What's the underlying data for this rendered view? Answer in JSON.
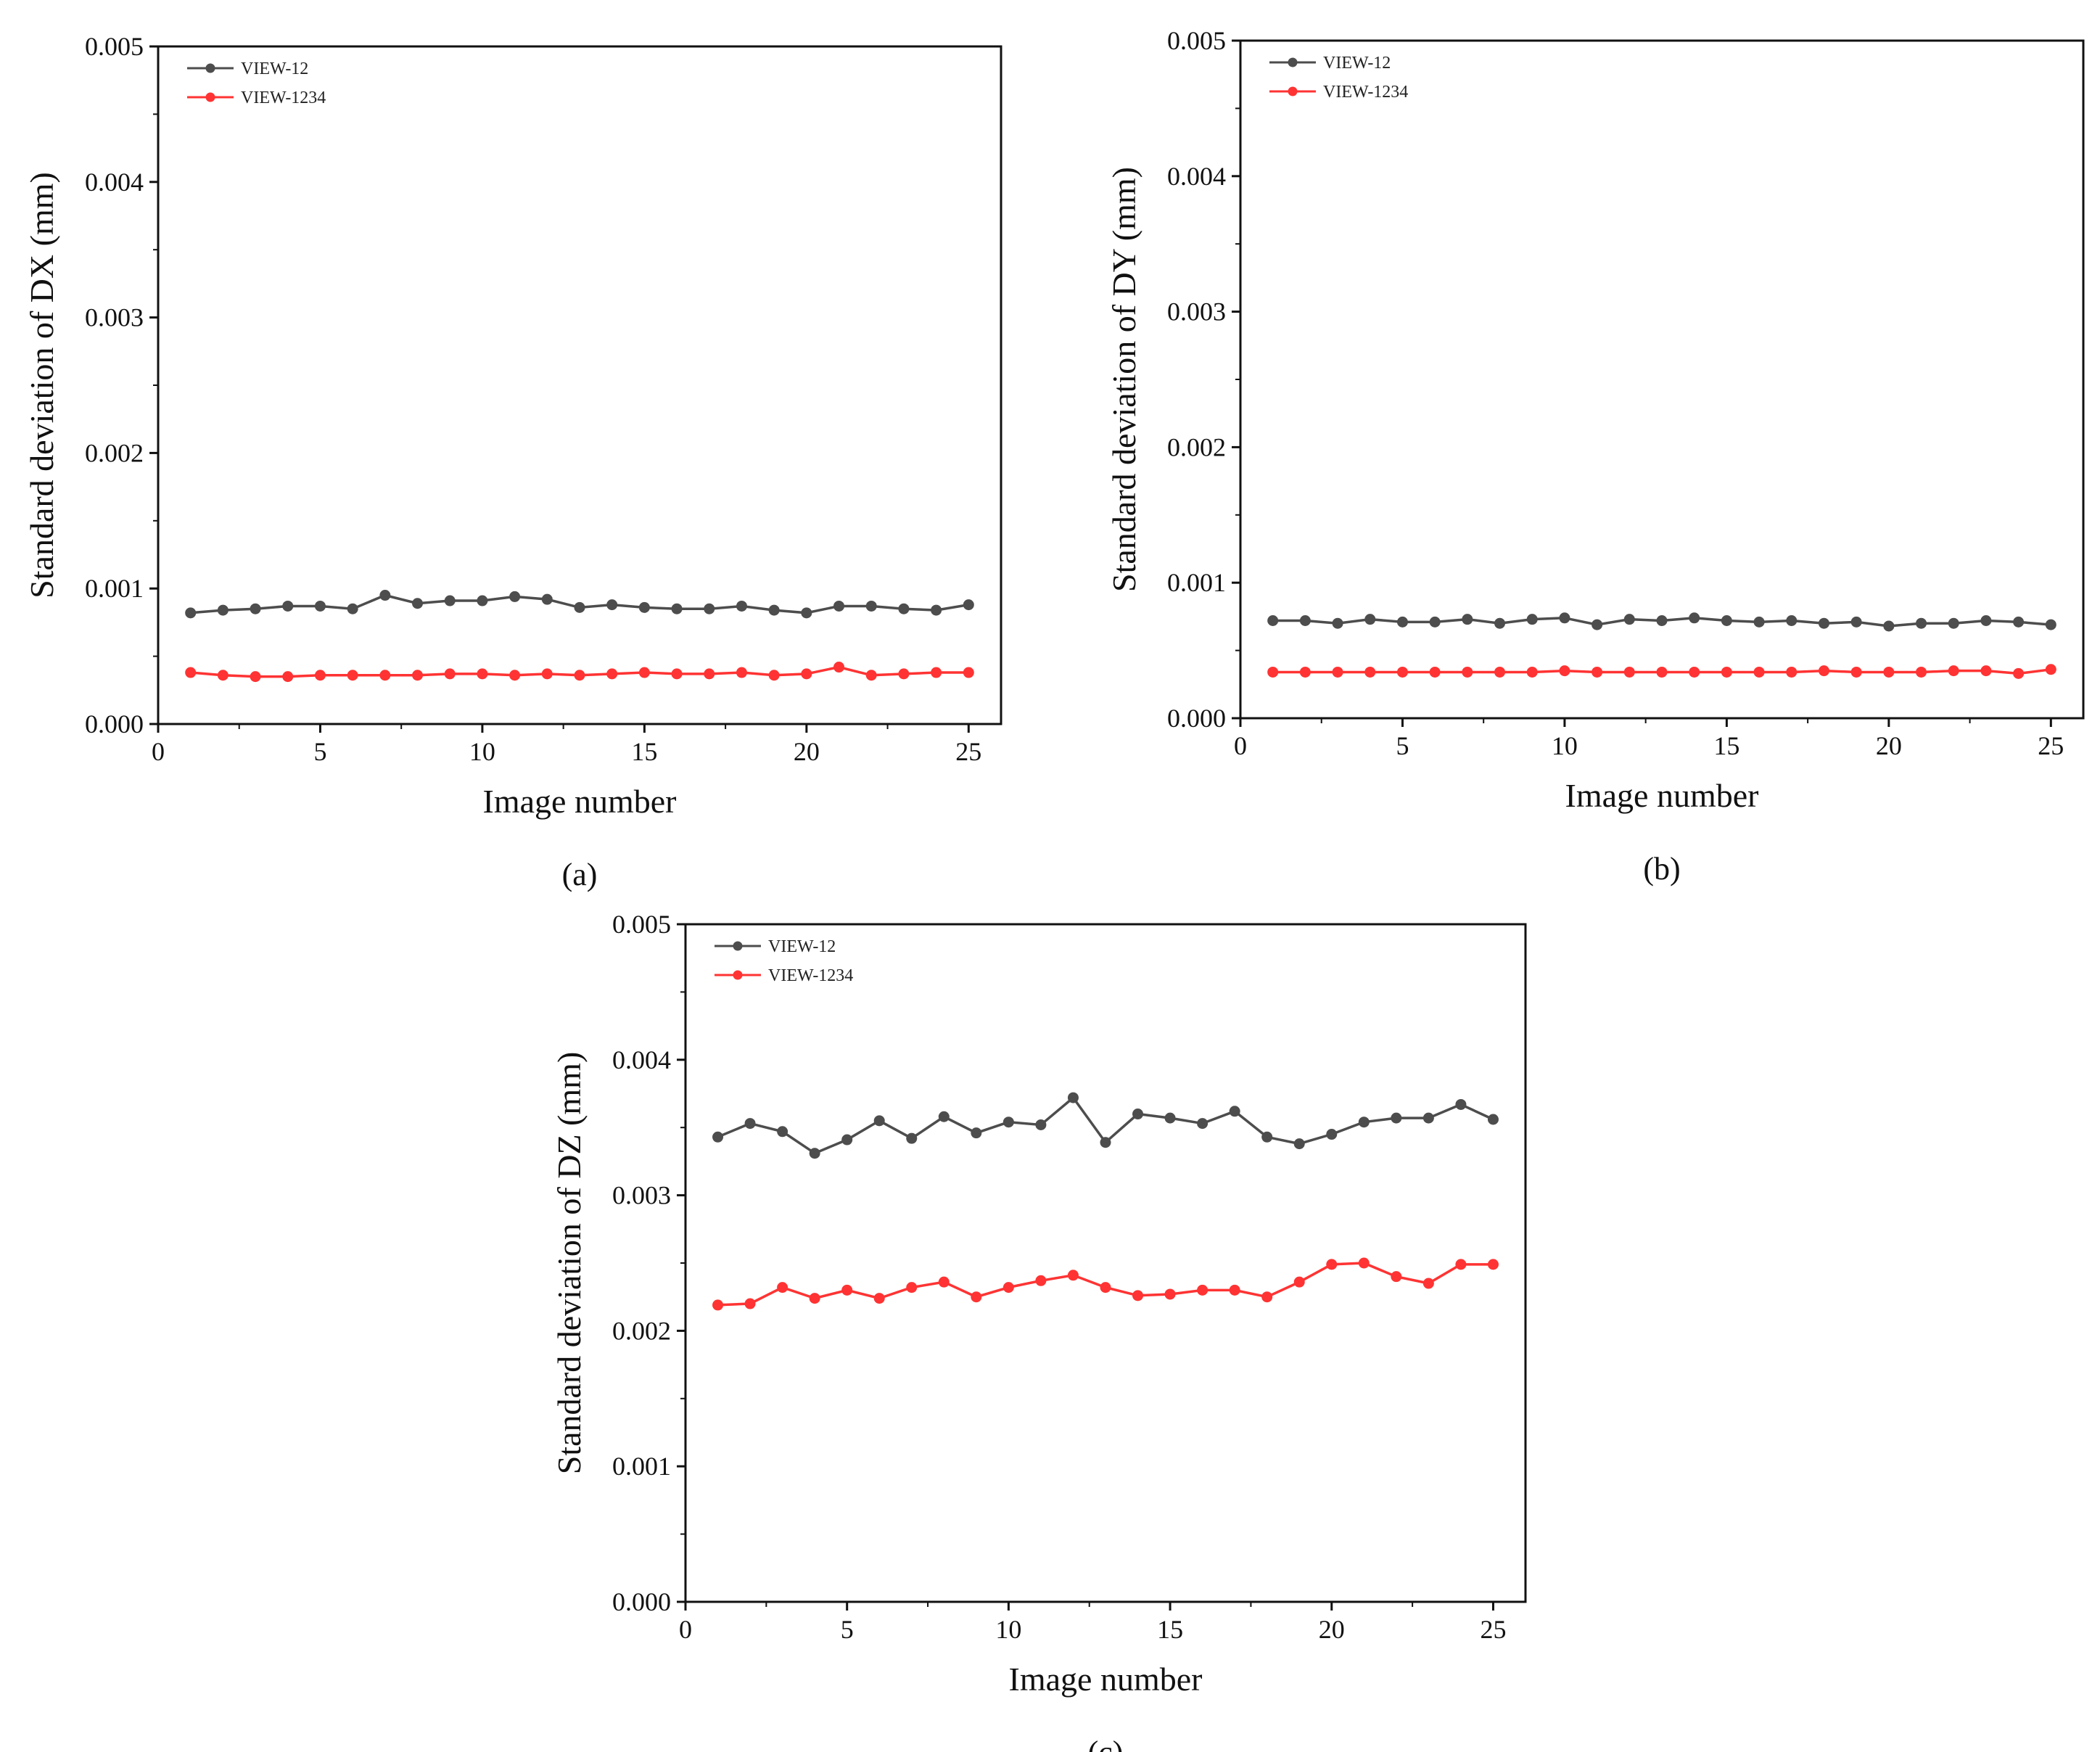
{
  "chart_data": [
    {
      "type": "line",
      "panel_label": "(a)",
      "xlabel": "Image number",
      "ylabel": "Standard deviation of DX (mm)",
      "xlim": [
        0,
        26
      ],
      "ylim": [
        0,
        0.005
      ],
      "xticks": [
        0,
        5,
        10,
        15,
        20,
        25
      ],
      "yticks": [
        0,
        0.001,
        0.002,
        0.003,
        0.004,
        0.005
      ],
      "ytick_labels": [
        "0.000",
        "0.001",
        "0.002",
        "0.003",
        "0.004",
        "0.005"
      ],
      "legend_position": "top-left",
      "x": [
        1,
        2,
        3,
        4,
        5,
        6,
        7,
        8,
        9,
        10,
        11,
        12,
        13,
        14,
        15,
        16,
        17,
        18,
        19,
        20,
        21,
        22,
        23,
        24,
        25
      ],
      "series": [
        {
          "name": "VIEW-12",
          "color": "#4d4d4d",
          "values": [
            0.00082,
            0.00084,
            0.00085,
            0.00087,
            0.00087,
            0.00085,
            0.00095,
            0.00089,
            0.00091,
            0.00091,
            0.00094,
            0.00092,
            0.00086,
            0.00088,
            0.00086,
            0.00085,
            0.00085,
            0.00087,
            0.00084,
            0.00082,
            0.00087,
            0.00087,
            0.00085,
            0.00084,
            0.00088
          ]
        },
        {
          "name": "VIEW-1234",
          "color": "#ff3333",
          "values": [
            0.00038,
            0.00036,
            0.00035,
            0.00035,
            0.00036,
            0.00036,
            0.00036,
            0.00036,
            0.00037,
            0.00037,
            0.00036,
            0.00037,
            0.00036,
            0.00037,
            0.00038,
            0.00037,
            0.00037,
            0.00038,
            0.00036,
            0.00037,
            0.00042,
            0.00036,
            0.00037,
            0.00038,
            0.00038
          ]
        }
      ]
    },
    {
      "type": "line",
      "panel_label": "(b)",
      "xlabel": "Image number",
      "ylabel": "Standard deviation of DY (mm)",
      "xlim": [
        0,
        26
      ],
      "ylim": [
        0,
        0.005
      ],
      "xticks": [
        0,
        5,
        10,
        15,
        20,
        25
      ],
      "yticks": [
        0,
        0.001,
        0.002,
        0.003,
        0.004,
        0.005
      ],
      "ytick_labels": [
        "0.000",
        "0.001",
        "0.002",
        "0.003",
        "0.004",
        "0.005"
      ],
      "legend_position": "top-left",
      "x": [
        1,
        2,
        3,
        4,
        5,
        6,
        7,
        8,
        9,
        10,
        11,
        12,
        13,
        14,
        15,
        16,
        17,
        18,
        19,
        20,
        21,
        22,
        23,
        24,
        25
      ],
      "series": [
        {
          "name": "VIEW-12",
          "color": "#4d4d4d",
          "values": [
            0.00072,
            0.00072,
            0.0007,
            0.00073,
            0.00071,
            0.00071,
            0.00073,
            0.0007,
            0.00073,
            0.00074,
            0.00069,
            0.00073,
            0.00072,
            0.00074,
            0.00072,
            0.00071,
            0.00072,
            0.0007,
            0.00071,
            0.00068,
            0.0007,
            0.0007,
            0.00072,
            0.00071,
            0.00069
          ]
        },
        {
          "name": "VIEW-1234",
          "color": "#ff3333",
          "values": [
            0.00034,
            0.00034,
            0.00034,
            0.00034,
            0.00034,
            0.00034,
            0.00034,
            0.00034,
            0.00034,
            0.00035,
            0.00034,
            0.00034,
            0.00034,
            0.00034,
            0.00034,
            0.00034,
            0.00034,
            0.00035,
            0.00034,
            0.00034,
            0.00034,
            0.00035,
            0.00035,
            0.00033,
            0.00036
          ]
        }
      ]
    },
    {
      "type": "line",
      "panel_label": "(c)",
      "xlabel": "Image number",
      "ylabel": "Standard deviation of DZ (mm)",
      "xlim": [
        0,
        26
      ],
      "ylim": [
        0,
        0.005
      ],
      "xticks": [
        0,
        5,
        10,
        15,
        20,
        25
      ],
      "yticks": [
        0,
        0.001,
        0.002,
        0.003,
        0.004,
        0.005
      ],
      "ytick_labels": [
        "0.000",
        "0.001",
        "0.002",
        "0.003",
        "0.004",
        "0.005"
      ],
      "legend_position": "top-left",
      "x": [
        1,
        2,
        3,
        4,
        5,
        6,
        7,
        8,
        9,
        10,
        11,
        12,
        13,
        14,
        15,
        16,
        17,
        18,
        19,
        20,
        21,
        22,
        23,
        24,
        25
      ],
      "series": [
        {
          "name": "VIEW-12",
          "color": "#4d4d4d",
          "values": [
            0.00343,
            0.00353,
            0.00347,
            0.00331,
            0.00341,
            0.00355,
            0.00342,
            0.00358,
            0.00346,
            0.00354,
            0.00352,
            0.00372,
            0.00339,
            0.0036,
            0.00357,
            0.00353,
            0.00362,
            0.00343,
            0.00338,
            0.00345,
            0.00354,
            0.00357,
            0.00357,
            0.00367,
            0.00356
          ]
        },
        {
          "name": "VIEW-1234",
          "color": "#ff3333",
          "values": [
            0.00219,
            0.0022,
            0.00232,
            0.00224,
            0.0023,
            0.00224,
            0.00232,
            0.00236,
            0.00225,
            0.00232,
            0.00237,
            0.00241,
            0.00232,
            0.00226,
            0.00227,
            0.0023,
            0.0023,
            0.00225,
            0.00236,
            0.00249,
            0.0025,
            0.0024,
            0.00235,
            0.00249,
            0.00249
          ]
        }
      ]
    }
  ]
}
